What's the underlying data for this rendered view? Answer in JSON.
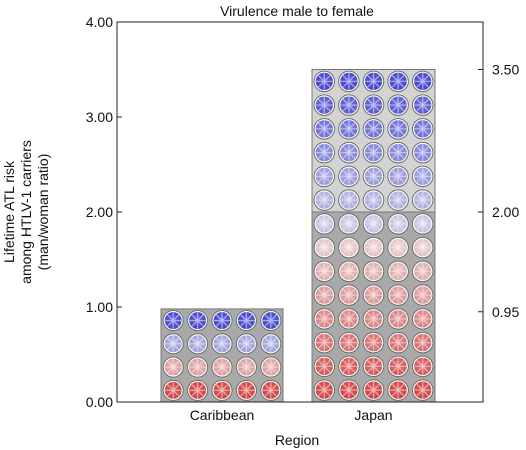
{
  "chart_data": {
    "type": "bar",
    "title": "Virulence male to female",
    "xlabel": "Region",
    "ylabel_lines": [
      "Lifetime ATL risk",
      "among HTLV-1 carriers",
      "(man/woman ratio)"
    ],
    "categories": [
      "Caribbean",
      "Japan"
    ],
    "values": [
      0.98,
      3.5
    ],
    "ylim": [
      0,
      4
    ],
    "yticks": [
      "0.00",
      "1.00",
      "2.00",
      "3.00",
      "4.00"
    ],
    "right_ticks": [
      {
        "value": 0.95,
        "label": "0.95"
      },
      {
        "value": 2.0,
        "label": "2.00"
      },
      {
        "value": 3.5,
        "label": "3.50"
      }
    ],
    "grid": false,
    "glyph_grid": {
      "Caribbean": {
        "columns": 5,
        "rows": 4
      },
      "Japan": {
        "columns": 5,
        "rows": 14
      }
    },
    "colors": {
      "male_glyph": "#4a4ae6",
      "female_glyph": "#e84848",
      "bar_fill": "#a9a9a9",
      "upper_bar_fill": "#d3d3d3"
    }
  }
}
